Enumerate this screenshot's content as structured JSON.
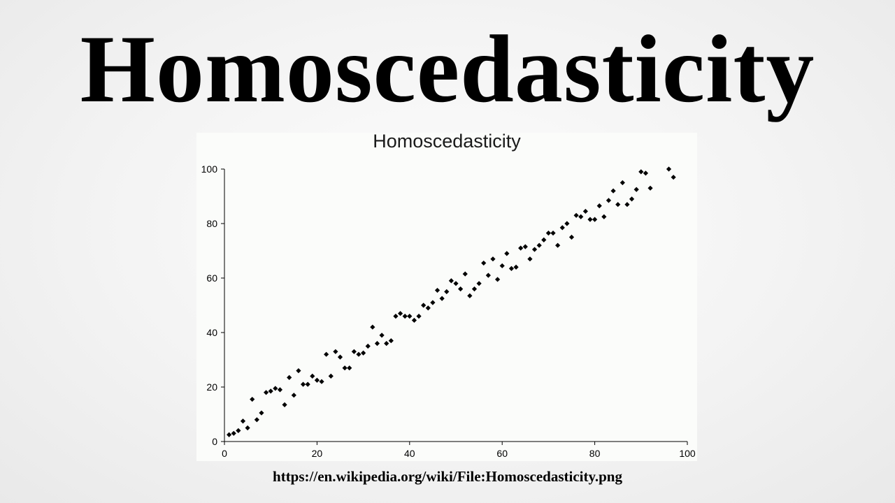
{
  "slide": {
    "title": "Homoscedasticity",
    "source": "https://en.wikipedia.org/wiki/File:Homoscedasticity.png"
  },
  "chart_data": {
    "type": "scatter",
    "title": "Homoscedasticity",
    "xlabel": "",
    "ylabel": "",
    "xlim": [
      0,
      100
    ],
    "ylim": [
      0,
      100
    ],
    "x_ticks": [
      0,
      20,
      40,
      60,
      80,
      100
    ],
    "y_ticks": [
      0,
      20,
      40,
      60,
      80,
      100
    ],
    "grid": false,
    "legend": "none",
    "marker_color": "#000000",
    "series": [
      {
        "x": [
          1,
          2,
          3,
          4,
          5,
          6,
          7,
          8,
          9,
          10,
          11,
          12,
          13,
          14,
          15,
          16,
          17,
          18,
          19,
          20,
          21,
          22,
          23,
          24,
          25,
          26,
          27,
          28,
          29,
          30,
          31,
          32,
          33,
          34,
          35,
          36,
          37,
          38,
          39,
          40,
          41,
          42,
          43,
          44,
          45,
          46,
          47,
          48,
          49,
          50,
          51,
          52,
          53,
          54,
          55,
          56,
          57,
          58,
          59,
          60,
          61,
          62,
          63,
          64,
          65,
          66,
          67,
          68,
          69,
          70,
          71,
          72,
          73,
          74,
          75,
          76,
          77,
          78,
          79,
          80,
          81,
          82,
          83,
          84,
          85,
          86,
          87,
          88,
          89,
          90,
          91,
          92,
          96,
          97
        ],
        "y": [
          2.5,
          3,
          4,
          7.5,
          5,
          15.5,
          8,
          10.5,
          18,
          18.5,
          19.5,
          19,
          13.5,
          23.5,
          17,
          26,
          21,
          21,
          24,
          22.5,
          22,
          32,
          24,
          33,
          31,
          27,
          27,
          33,
          32,
          32.5,
          35,
          42,
          36,
          39,
          36,
          37,
          46,
          47,
          46,
          46,
          44.5,
          46,
          50,
          49,
          51,
          55.5,
          52.5,
          55,
          59,
          58,
          56,
          61.5,
          53.5,
          56,
          58,
          65.5,
          61,
          67,
          59.5,
          64.5,
          69,
          63.5,
          64,
          71,
          71.5,
          67,
          70.5,
          72,
          74,
          76.5,
          76.5,
          72,
          78.5,
          80,
          75,
          83,
          82.5,
          84.5,
          81.5,
          81.5,
          86.5,
          82.5,
          88.5,
          92,
          87,
          95,
          87,
          89,
          92.5,
          99,
          98.5,
          93,
          100,
          97
        ]
      }
    ]
  }
}
